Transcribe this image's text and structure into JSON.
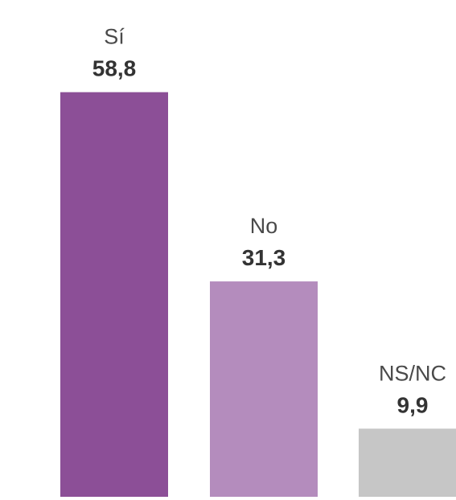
{
  "chart_data": {
    "type": "bar",
    "categories": [
      "Sí",
      "No",
      "NS/NC"
    ],
    "values": [
      58.8,
      31.3,
      9.9
    ],
    "value_labels": [
      "58,8",
      "31,3",
      "9,9"
    ],
    "colors": [
      "#8c4f97",
      "#b48cbd",
      "#c6c6c6"
    ],
    "title": "",
    "xlabel": "",
    "ylabel": "",
    "grid": false,
    "legend": "none"
  }
}
